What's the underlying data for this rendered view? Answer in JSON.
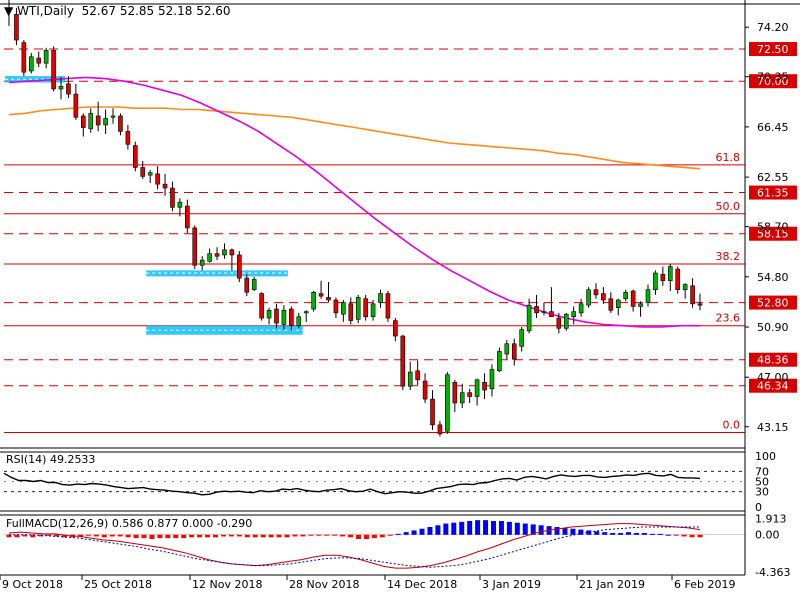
{
  "chart_data": {
    "type": "candlestick",
    "symbol": "WTI",
    "timeframe": "Daily",
    "ohlc": {
      "open": 52.67,
      "high": 52.85,
      "low": 52.18,
      "close": 52.6
    },
    "price_axis": {
      "range": [
        41.5,
        76.0
      ],
      "ticks": [
        "74.20",
        "70.35",
        "66.45",
        "62.55",
        "58.70",
        "54.80",
        "50.90",
        "47.00",
        "43.15"
      ]
    },
    "time_axis": {
      "labels": [
        "9 Oct 2018",
        "25 Oct 2018",
        "12 Nov 2018",
        "28 Nov 2018",
        "14 Dec 2018",
        "3 Jan 2019",
        "21 Jan 2019",
        "6 Feb 2019"
      ]
    },
    "candles": [
      {
        "o": 75.6,
        "h": 76.9,
        "l": 74.3,
        "c": 75.5
      },
      {
        "o": 75.2,
        "h": 75.7,
        "l": 72.8,
        "c": 73.2
      },
      {
        "o": 73.0,
        "h": 73.2,
        "l": 70.4,
        "c": 70.7
      },
      {
        "o": 70.8,
        "h": 72.2,
        "l": 70.6,
        "c": 71.9
      },
      {
        "o": 71.8,
        "h": 72.3,
        "l": 71.1,
        "c": 71.4
      },
      {
        "o": 71.4,
        "h": 72.6,
        "l": 71.0,
        "c": 72.4
      },
      {
        "o": 72.4,
        "h": 72.7,
        "l": 69.2,
        "c": 69.4
      },
      {
        "o": 69.4,
        "h": 70.3,
        "l": 68.6,
        "c": 69.6
      },
      {
        "o": 69.8,
        "h": 70.4,
        "l": 68.7,
        "c": 69.0
      },
      {
        "o": 69.0,
        "h": 69.8,
        "l": 67.0,
        "c": 67.2
      },
      {
        "o": 67.3,
        "h": 67.5,
        "l": 65.7,
        "c": 66.4
      },
      {
        "o": 66.3,
        "h": 67.9,
        "l": 66.0,
        "c": 67.5
      },
      {
        "o": 67.3,
        "h": 68.4,
        "l": 66.1,
        "c": 66.6
      },
      {
        "o": 66.6,
        "h": 67.8,
        "l": 65.9,
        "c": 67.1
      },
      {
        "o": 67.2,
        "h": 67.9,
        "l": 66.7,
        "c": 67.3
      },
      {
        "o": 67.3,
        "h": 67.5,
        "l": 65.8,
        "c": 66.1
      },
      {
        "o": 66.1,
        "h": 66.6,
        "l": 64.7,
        "c": 65.1
      },
      {
        "o": 65.0,
        "h": 65.3,
        "l": 63.0,
        "c": 63.3
      },
      {
        "o": 63.3,
        "h": 63.8,
        "l": 62.4,
        "c": 62.6
      },
      {
        "o": 62.7,
        "h": 63.1,
        "l": 62.1,
        "c": 62.9
      },
      {
        "o": 62.8,
        "h": 63.4,
        "l": 61.6,
        "c": 62.0
      },
      {
        "o": 62.0,
        "h": 62.8,
        "l": 61.1,
        "c": 61.7
      },
      {
        "o": 61.7,
        "h": 62.2,
        "l": 59.9,
        "c": 60.2
      },
      {
        "o": 60.2,
        "h": 60.9,
        "l": 59.5,
        "c": 60.6
      },
      {
        "o": 60.3,
        "h": 60.8,
        "l": 58.2,
        "c": 58.6
      },
      {
        "o": 58.6,
        "h": 58.8,
        "l": 55.4,
        "c": 55.7
      },
      {
        "o": 55.7,
        "h": 56.4,
        "l": 55.3,
        "c": 56.1
      },
      {
        "o": 56.0,
        "h": 57.0,
        "l": 55.9,
        "c": 56.6
      },
      {
        "o": 56.6,
        "h": 57.1,
        "l": 56.1,
        "c": 56.4
      },
      {
        "o": 56.5,
        "h": 57.4,
        "l": 56.2,
        "c": 56.9
      },
      {
        "o": 56.9,
        "h": 57.0,
        "l": 55.3,
        "c": 56.5
      },
      {
        "o": 56.5,
        "h": 56.8,
        "l": 54.4,
        "c": 54.7
      },
      {
        "o": 54.7,
        "h": 55.0,
        "l": 53.3,
        "c": 53.6
      },
      {
        "o": 53.8,
        "h": 54.8,
        "l": 53.7,
        "c": 54.6
      },
      {
        "o": 53.5,
        "h": 53.6,
        "l": 51.4,
        "c": 51.6
      },
      {
        "o": 51.6,
        "h": 52.4,
        "l": 51.1,
        "c": 52.2
      },
      {
        "o": 52.3,
        "h": 52.7,
        "l": 50.8,
        "c": 51.2
      },
      {
        "o": 51.1,
        "h": 52.6,
        "l": 50.7,
        "c": 52.2
      },
      {
        "o": 52.3,
        "h": 52.5,
        "l": 50.6,
        "c": 51.0
      },
      {
        "o": 51.0,
        "h": 52.0,
        "l": 50.8,
        "c": 51.7
      },
      {
        "o": 52.0,
        "h": 52.2,
        "l": 51.3,
        "c": 52.1
      },
      {
        "o": 52.3,
        "h": 53.7,
        "l": 52.1,
        "c": 53.6
      },
      {
        "o": 53.5,
        "h": 54.5,
        "l": 53.1,
        "c": 53.3
      },
      {
        "o": 53.2,
        "h": 54.4,
        "l": 52.8,
        "c": 53.0
      },
      {
        "o": 53.0,
        "h": 53.2,
        "l": 51.6,
        "c": 52.0
      },
      {
        "o": 51.9,
        "h": 53.0,
        "l": 51.3,
        "c": 52.8
      },
      {
        "o": 52.7,
        "h": 53.2,
        "l": 51.1,
        "c": 51.4
      },
      {
        "o": 51.5,
        "h": 53.4,
        "l": 51.2,
        "c": 53.2
      },
      {
        "o": 53.1,
        "h": 53.4,
        "l": 51.4,
        "c": 51.7
      },
      {
        "o": 51.7,
        "h": 53.0,
        "l": 51.4,
        "c": 52.7
      },
      {
        "o": 52.8,
        "h": 53.8,
        "l": 52.4,
        "c": 53.5
      },
      {
        "o": 53.5,
        "h": 53.7,
        "l": 51.3,
        "c": 51.6
      },
      {
        "o": 51.4,
        "h": 51.6,
        "l": 49.8,
        "c": 50.2
      },
      {
        "o": 50.2,
        "h": 50.3,
        "l": 46.0,
        "c": 46.3
      },
      {
        "o": 46.3,
        "h": 48.2,
        "l": 46.0,
        "c": 47.4
      },
      {
        "o": 47.5,
        "h": 48.3,
        "l": 46.4,
        "c": 46.8
      },
      {
        "o": 46.7,
        "h": 47.3,
        "l": 45.0,
        "c": 45.3
      },
      {
        "o": 45.3,
        "h": 46.0,
        "l": 42.9,
        "c": 43.3
      },
      {
        "o": 43.3,
        "h": 43.6,
        "l": 42.4,
        "c": 42.6
      },
      {
        "o": 42.8,
        "h": 47.4,
        "l": 42.6,
        "c": 47.2
      },
      {
        "o": 46.6,
        "h": 46.8,
        "l": 44.3,
        "c": 45.0
      },
      {
        "o": 45.0,
        "h": 46.5,
        "l": 44.6,
        "c": 45.8
      },
      {
        "o": 45.8,
        "h": 46.1,
        "l": 45.0,
        "c": 45.5
      },
      {
        "o": 45.5,
        "h": 46.9,
        "l": 44.8,
        "c": 46.8
      },
      {
        "o": 46.6,
        "h": 47.3,
        "l": 45.3,
        "c": 46.0
      },
      {
        "o": 46.1,
        "h": 48.0,
        "l": 45.5,
        "c": 47.6
      },
      {
        "o": 47.5,
        "h": 49.3,
        "l": 47.4,
        "c": 49.0
      },
      {
        "o": 48.8,
        "h": 49.9,
        "l": 48.4,
        "c": 49.6
      },
      {
        "o": 49.6,
        "h": 50.0,
        "l": 47.9,
        "c": 48.4
      },
      {
        "o": 49.4,
        "h": 50.9,
        "l": 49.0,
        "c": 50.7
      },
      {
        "o": 50.6,
        "h": 53.1,
        "l": 50.4,
        "c": 52.6
      },
      {
        "o": 52.5,
        "h": 53.4,
        "l": 51.6,
        "c": 52.0
      },
      {
        "o": 52.1,
        "h": 52.8,
        "l": 51.8,
        "c": 52.1
      },
      {
        "o": 52.1,
        "h": 54.0,
        "l": 51.7,
        "c": 51.7
      },
      {
        "o": 51.6,
        "h": 52.0,
        "l": 50.4,
        "c": 50.8
      },
      {
        "o": 50.8,
        "h": 52.0,
        "l": 50.6,
        "c": 51.9
      },
      {
        "o": 51.7,
        "h": 52.5,
        "l": 51.1,
        "c": 52.1
      },
      {
        "o": 52.0,
        "h": 53.1,
        "l": 51.7,
        "c": 52.7
      },
      {
        "o": 52.6,
        "h": 54.0,
        "l": 52.4,
        "c": 53.8
      },
      {
        "o": 53.8,
        "h": 54.3,
        "l": 53.1,
        "c": 53.4
      },
      {
        "o": 53.5,
        "h": 54.0,
        "l": 52.7,
        "c": 53.0
      },
      {
        "o": 53.1,
        "h": 53.6,
        "l": 52.0,
        "c": 52.2
      },
      {
        "o": 52.4,
        "h": 53.1,
        "l": 51.8,
        "c": 53.0
      },
      {
        "o": 53.1,
        "h": 53.8,
        "l": 52.9,
        "c": 53.6
      },
      {
        "o": 53.7,
        "h": 53.8,
        "l": 52.1,
        "c": 52.5
      },
      {
        "o": 52.5,
        "h": 52.9,
        "l": 51.7,
        "c": 52.7
      },
      {
        "o": 52.8,
        "h": 54.2,
        "l": 52.5,
        "c": 53.8
      },
      {
        "o": 53.8,
        "h": 55.3,
        "l": 53.4,
        "c": 55.1
      },
      {
        "o": 55.0,
        "h": 55.6,
        "l": 54.1,
        "c": 54.5
      },
      {
        "o": 54.5,
        "h": 55.8,
        "l": 53.7,
        "c": 55.6
      },
      {
        "o": 55.4,
        "h": 55.6,
        "l": 53.5,
        "c": 53.8
      },
      {
        "o": 53.8,
        "h": 54.3,
        "l": 53.1,
        "c": 54.2
      },
      {
        "o": 54.1,
        "h": 54.7,
        "l": 52.4,
        "c": 52.7
      },
      {
        "o": 52.7,
        "h": 53.5,
        "l": 52.2,
        "c": 52.6
      }
    ],
    "series": [
      {
        "name": "200-day MA",
        "color": "#ff8c1a",
        "values": [
          67.4,
          67.5,
          67.7,
          67.8,
          67.9,
          68.0,
          68.0,
          68.0,
          67.9,
          67.9,
          67.9,
          67.8,
          67.8,
          67.7,
          67.6,
          67.5,
          67.4,
          67.3,
          67.2,
          67.0,
          66.8,
          66.6,
          66.4,
          66.2,
          66.0,
          65.8,
          65.6,
          65.4,
          65.2,
          65.1,
          65.0,
          64.9,
          64.8,
          64.7,
          64.6,
          64.4,
          64.3,
          64.1,
          63.9,
          63.7,
          63.6,
          63.5,
          63.4,
          63.3,
          63.2
        ]
      },
      {
        "name": "50-day MA",
        "color": "#e000e0",
        "values": [
          69.9,
          70.0,
          70.1,
          70.2,
          70.3,
          70.2,
          70.0,
          69.7,
          69.3,
          68.9,
          68.3,
          67.6,
          66.9,
          66.1,
          65.1,
          64.1,
          63.0,
          61.8,
          60.6,
          59.4,
          58.3,
          57.2,
          56.2,
          55.3,
          54.5,
          53.7,
          53.0,
          52.5,
          52.0,
          51.6,
          51.3,
          51.1,
          51.0,
          50.9,
          50.9,
          51.0,
          51.0
        ]
      }
    ],
    "horizontal_levels": [
      {
        "value": 72.5,
        "label": "72.50",
        "style": "dashed",
        "color": "#d60000"
      },
      {
        "value": 70.0,
        "label": "70.00",
        "style": "dashed",
        "color": "#d60000"
      },
      {
        "value": 63.5,
        "label": "61.8",
        "style": "solid",
        "color": "#d60000"
      },
      {
        "value": 61.35,
        "label": "61.35",
        "style": "dashed",
        "color": "#d60000"
      },
      {
        "value": 59.7,
        "label": "50.0",
        "style": "solid",
        "color": "#d60000"
      },
      {
        "value": 58.15,
        "label": "58.15",
        "style": "dashed",
        "color": "#d60000"
      },
      {
        "value": 55.8,
        "label": "38.2",
        "style": "solid",
        "color": "#d60000"
      },
      {
        "value": 52.8,
        "label": "52.80",
        "style": "dashed",
        "color": "#d60000"
      },
      {
        "value": 51.0,
        "label": "23.6",
        "style": "solid",
        "color": "#d60000"
      },
      {
        "value": 48.36,
        "label": "48.36",
        "style": "dashed",
        "color": "#d60000"
      },
      {
        "value": 46.34,
        "label": "46.34",
        "style": "dashed",
        "color": "#d60000"
      },
      {
        "value": 42.7,
        "label": "0.0",
        "style": "solid",
        "color": "#d60000"
      }
    ],
    "highlight_zones": [
      {
        "x_start": 0,
        "x_end": 7,
        "y_low": 69.9,
        "y_high": 70.4
      },
      {
        "x_start": 19,
        "x_end": 37,
        "y_low": 54.9,
        "y_high": 55.3
      },
      {
        "x_start": 19,
        "x_end": 39,
        "y_low": 50.3,
        "y_high": 51.0
      }
    ],
    "rsi": {
      "title": "RSI(14) 49.2533",
      "range": [
        0,
        100
      ],
      "ticks": [
        "100",
        "70",
        "50",
        "30",
        "0"
      ],
      "levels": [
        70,
        30
      ],
      "values": [
        66,
        58,
        52,
        52,
        50,
        52,
        48,
        48,
        44,
        43,
        45,
        44,
        46,
        45,
        43,
        40,
        38,
        36,
        37,
        38,
        35,
        34,
        33,
        31,
        30,
        28,
        27,
        24,
        25,
        29,
        31,
        30,
        31,
        29,
        28,
        32,
        30,
        31,
        35,
        34,
        36,
        33,
        31,
        30,
        33,
        34,
        36,
        32,
        30,
        31,
        35,
        30,
        26,
        28,
        30,
        29,
        27,
        27,
        31,
        36,
        38,
        40,
        44,
        45,
        44,
        47,
        48,
        52,
        55,
        56,
        53,
        58,
        60,
        58,
        55,
        60,
        63,
        61,
        60,
        62,
        62,
        59,
        58,
        60,
        61,
        63,
        62,
        65,
        66,
        62,
        61,
        64,
        58,
        57,
        57,
        56
      ]
    },
    "macd": {
      "title": "FullMACD(12,26,9) 0.586 0.877 0.000 -0.290",
      "ticks": [
        "1.913",
        "0.00",
        "-4.363"
      ],
      "range": [
        -4.7,
        2.3
      ],
      "histogram": [
        -0.3,
        -0.3,
        -0.2,
        -0.3,
        -0.2,
        -0.1,
        -0.2,
        -0.3,
        -0.3,
        -0.2,
        -0.1,
        -0.2,
        -0.3,
        -0.2,
        -0.2,
        -0.3,
        -0.4,
        -0.4,
        -0.5,
        -0.4,
        -0.4,
        -0.4,
        -0.4,
        -0.3,
        -0.3,
        -0.3,
        -0.3,
        -0.2,
        -0.2,
        -0.2,
        -0.3,
        -0.3,
        -0.3,
        -0.3,
        -0.3,
        -0.3,
        -0.2,
        -0.2,
        -0.1,
        -0.1,
        -0.1,
        -0.1,
        -0.2,
        -0.3,
        -0.5,
        -0.5,
        -0.4,
        -0.3,
        -0.1,
        0.1,
        0.3,
        0.5,
        0.7,
        0.9,
        1.1,
        1.3,
        1.4,
        1.5,
        1.6,
        1.7,
        1.7,
        1.6,
        1.6,
        1.5,
        1.4,
        1.3,
        1.2,
        1.1,
        1.0,
        0.9,
        0.8,
        0.7,
        0.6,
        0.5,
        0.4,
        0.3,
        0.2,
        0.2,
        0.3,
        0.2,
        0.2,
        0.1,
        0.1,
        0.0,
        -0.1,
        -0.2,
        -0.3,
        -0.3
      ],
      "macd_line": [
        0.2,
        0.3,
        0.2,
        0.1,
        0.1,
        -0.1,
        -0.2,
        -0.4,
        -0.6,
        -0.7,
        -0.9,
        -1.1,
        -1.3,
        -1.5,
        -1.8,
        -2.1,
        -2.5,
        -2.9,
        -3.2,
        -3.4,
        -3.5,
        -3.6,
        -3.5,
        -3.3,
        -3.1,
        -2.9,
        -2.6,
        -2.4,
        -2.4,
        -2.6,
        -2.9,
        -3.3,
        -3.7,
        -3.9,
        -3.9,
        -3.8,
        -3.6,
        -3.3,
        -2.9,
        -2.5,
        -2.0,
        -1.6,
        -1.1,
        -0.6,
        -0.2,
        0.2,
        0.5,
        0.7,
        0.9,
        1.0,
        1.1,
        1.2,
        1.3,
        1.3,
        1.2,
        1.1,
        1.0,
        0.9,
        0.8,
        0.6
      ],
      "signal_line": [
        0.0,
        0.0,
        0.0,
        -0.1,
        -0.2,
        -0.3,
        -0.4,
        -0.6,
        -0.8,
        -1.0,
        -1.2,
        -1.4,
        -1.7,
        -1.9,
        -2.2,
        -2.5,
        -2.8,
        -3.0,
        -3.2,
        -3.4,
        -3.5,
        -3.6,
        -3.6,
        -3.5,
        -3.4,
        -3.2,
        -3.0,
        -2.8,
        -2.7,
        -2.7,
        -2.8,
        -3.0,
        -3.2,
        -3.4,
        -3.6,
        -3.7,
        -3.8,
        -3.7,
        -3.6,
        -3.4,
        -3.1,
        -2.8,
        -2.4,
        -2.0,
        -1.6,
        -1.2,
        -0.8,
        -0.4,
        -0.1,
        0.2,
        0.4,
        0.6,
        0.7,
        0.8,
        0.9,
        0.9,
        0.9,
        0.9,
        0.9,
        0.9
      ]
    }
  }
}
